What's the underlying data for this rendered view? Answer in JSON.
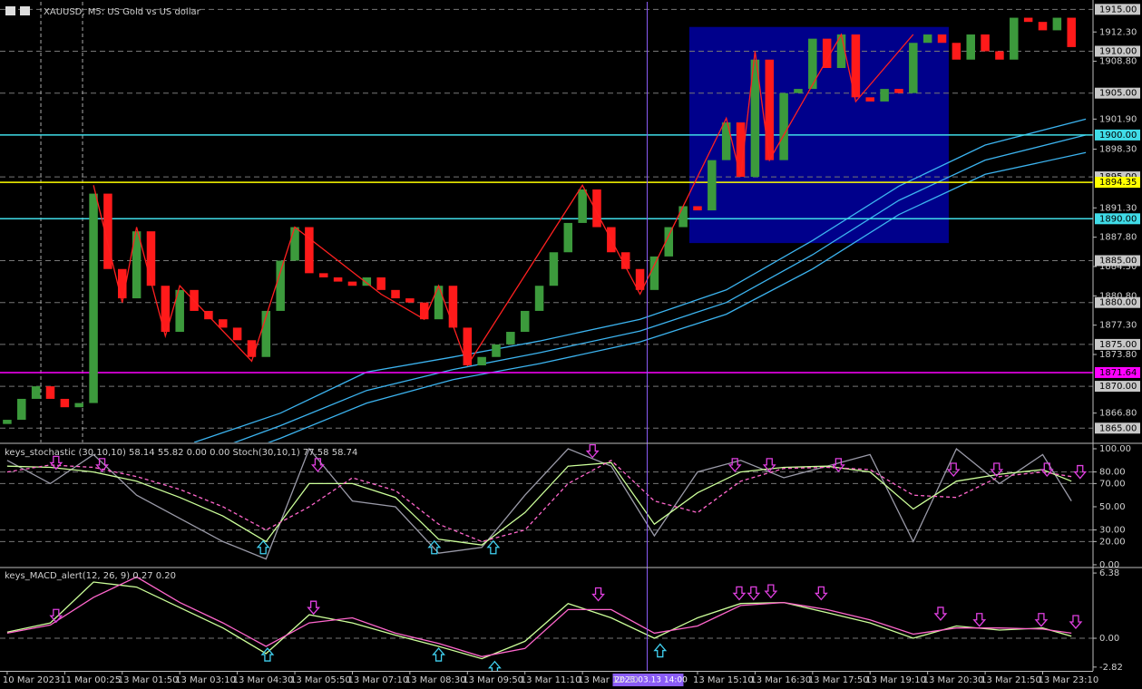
{
  "chart_data": [
    {
      "type": "candlestick",
      "title": "XAUUSD, M5: US Gold vs US dollar",
      "open": [
        1865.5,
        1866.0,
        1868.5,
        1870.0,
        1868.5,
        1867.5,
        1868.0,
        1893.0,
        1884.0,
        1880.5,
        1888.5,
        1882.0,
        1876.5,
        1881.5,
        1879.0,
        1878.0,
        1877.0,
        1875.5,
        1873.5,
        1879.0,
        1885.0,
        1889.0,
        1883.5,
        1883.0,
        1882.5,
        1882.0,
        1883.0,
        1881.5,
        1880.5,
        1880.0,
        1878.0,
        1882.0,
        1877.0,
        1872.5,
        1873.5,
        1875.0,
        1876.5,
        1879.0,
        1882.0,
        1886.0,
        1889.5,
        1893.5,
        1889.0,
        1886.0,
        1884.0,
        1881.5,
        1885.5,
        1889.0,
        1891.5,
        1891.0,
        1897.0,
        1901.5,
        1895.0,
        1909.0,
        1897.0,
        1905.0,
        1905.5,
        1911.5,
        1908.0,
        1912.0,
        1904.5,
        1904.0,
        1905.5,
        1905.0,
        1911.0,
        1912.0,
        1911.0,
        1909.0,
        1912.0,
        1910.0,
        1909.0,
        1914.0,
        1913.5,
        1912.5,
        1914.0
      ],
      "close": [
        1866.0,
        1868.5,
        1870.0,
        1868.5,
        1867.5,
        1868.0,
        1893.0,
        1884.0,
        1880.5,
        1888.5,
        1882.0,
        1876.5,
        1881.5,
        1879.0,
        1878.0,
        1877.0,
        1875.5,
        1873.5,
        1879.0,
        1885.0,
        1889.0,
        1883.5,
        1883.0,
        1882.5,
        1882.0,
        1883.0,
        1881.5,
        1880.5,
        1880.0,
        1878.0,
        1882.0,
        1877.0,
        1872.5,
        1873.5,
        1875.0,
        1876.5,
        1879.0,
        1882.0,
        1886.0,
        1889.5,
        1893.5,
        1889.0,
        1886.0,
        1884.0,
        1881.5,
        1885.5,
        1889.0,
        1891.5,
        1891.0,
        1897.0,
        1901.5,
        1895.0,
        1909.0,
        1897.0,
        1905.0,
        1905.5,
        1911.5,
        1908.0,
        1912.0,
        1904.5,
        1904.0,
        1905.5,
        1905.0,
        1911.0,
        1912.0,
        1911.0,
        1909.0,
        1912.0,
        1910.0,
        1909.0,
        1914.0,
        1913.5,
        1912.5,
        1914.0,
        1910.5
      ],
      "bull_color": "#3c9a3c",
      "bear_color": "#ff1a1a",
      "xlim": [
        -0.5,
        75.5
      ],
      "ylim": [
        1863.3,
        1915.9
      ],
      "xticks": [
        {
          "value": 0,
          "label": "10 Mar 2023"
        },
        {
          "value": 4,
          "label": "11 Mar 00:25"
        },
        {
          "value": 8,
          "label": "13 Mar 01:50"
        },
        {
          "value": 12,
          "label": "13 Mar 03:10"
        },
        {
          "value": 16,
          "label": "13 Mar 04:30"
        },
        {
          "value": 20,
          "label": "13 Mar 05:50"
        },
        {
          "value": 24,
          "label": "13 Mar 07:10"
        },
        {
          "value": 28,
          "label": "13 Mar 08:30"
        },
        {
          "value": 32,
          "label": "13 Mar 09:50"
        },
        {
          "value": 36,
          "label": "13 Mar 11:10"
        },
        {
          "value": 40,
          "label": "13 Mar 12:30"
        },
        {
          "value": 48,
          "label": "13 Mar 15:10"
        },
        {
          "value": 52,
          "label": "13 Mar 16:30"
        },
        {
          "value": 56,
          "label": "13 Mar 17:50"
        },
        {
          "value": 60,
          "label": "13 Mar 19:10"
        },
        {
          "value": 64,
          "label": "13 Mar 20:30"
        },
        {
          "value": 68,
          "label": "13 Mar 21:50"
        },
        {
          "value": 72,
          "label": "13 Mar 23:10"
        }
      ],
      "yticks": [
        {
          "value": 1912.3,
          "label": "1912.30"
        },
        {
          "value": 1908.8,
          "label": "1908.80"
        },
        {
          "value": 1901.9,
          "label": "1901.90"
        },
        {
          "value": 1898.3,
          "label": "1898.30"
        },
        {
          "value": 1891.3,
          "label": "1891.30"
        },
        {
          "value": 1887.8,
          "label": "1887.80"
        },
        {
          "value": 1884.3,
          "label": "1884.30"
        },
        {
          "value": 1880.8,
          "label": "1880.80"
        },
        {
          "value": 1877.3,
          "label": "1877.30"
        },
        {
          "value": 1873.8,
          "label": "1873.80"
        },
        {
          "value": 1866.8,
          "label": "1866.80"
        }
      ],
      "grid_levels": [
        {
          "value": 1915,
          "label": "1915.00"
        },
        {
          "value": 1910,
          "label": "1910.00"
        },
        {
          "value": 1905,
          "label": "1905.00"
        },
        {
          "value": 1895,
          "label": "1895.00"
        },
        {
          "value": 1885,
          "label": "1885.00"
        },
        {
          "value": 1880,
          "label": "1880.00"
        },
        {
          "value": 1875,
          "label": "1875.00"
        },
        {
          "value": 1870,
          "label": "1870.00"
        },
        {
          "value": 1865,
          "label": "1865.00"
        }
      ],
      "hlines": [
        {
          "value": 1900,
          "label": "1900.00",
          "color": "#40dce8"
        },
        {
          "value": 1894.35,
          "label": "1894.35",
          "color": "#ffff00"
        },
        {
          "value": 1890,
          "label": "1890.00",
          "color": "#40dce8"
        },
        {
          "value": 1871.64,
          "label": "1871.64",
          "color": "#ff00ff"
        }
      ],
      "rectangle": {
        "x": [
          47.43,
          65.47
        ],
        "values": [
          1912.9,
          1887.1
        ],
        "color": "#00008b"
      },
      "moving_averages": {
        "x": [
          13,
          19,
          25,
          31,
          37,
          44,
          50,
          56,
          62,
          68,
          75
        ],
        "color": "#3cb4f0",
        "series": [
          {
            "values": [
              1863.3,
              1866.8,
              1871.7,
              1873.5,
              1875.4,
              1878.0,
              1881.5,
              1887.4,
              1893.9,
              1898.8,
              1901.9
            ]
          },
          {
            "values": [
              1861.5,
              1865.3,
              1869.5,
              1872.0,
              1874.0,
              1876.6,
              1880.0,
              1885.7,
              1892.2,
              1897.0,
              1900.0
            ]
          },
          {
            "values": [
              1860.0,
              1863.8,
              1868.0,
              1870.8,
              1872.7,
              1875.3,
              1878.6,
              1884.0,
              1890.5,
              1895.3,
              1897.9
            ]
          }
        ]
      },
      "zigzag": {
        "x": [
          6,
          8,
          9,
          11,
          12,
          17,
          20,
          26,
          29,
          30,
          32,
          40,
          44,
          50,
          51,
          52,
          53,
          58,
          59,
          63
        ],
        "values": [
          1894,
          1880,
          1889,
          1876,
          1882,
          1873,
          1889,
          1881,
          1878,
          1882,
          1872.5,
          1894,
          1881,
          1902,
          1895,
          1910,
          1897,
          1912,
          1904,
          1912
        ],
        "color": "#ff2020"
      },
      "crosshair": {
        "value": 44.5,
        "label": "2023.03.13 14:00",
        "color": "#8a5cf5"
      },
      "separators": [
        2.34,
        5.24
      ]
    },
    {
      "type": "oscillator",
      "legend_text": "keys_stochastic (30,10,10) 58.14 55.82 0.00 0.00 Stoch(30,10,1) 77.58 58.74",
      "ylim": [
        -1.6,
        103.9
      ],
      "yticks": [
        {
          "value": 100,
          "label": "100.00"
        },
        {
          "value": 80,
          "label": "80.00"
        },
        {
          "value": 70,
          "label": "70.00"
        },
        {
          "value": 50,
          "label": "50.00"
        },
        {
          "value": 30,
          "label": "30.00"
        },
        {
          "value": 20,
          "label": "20.00"
        },
        {
          "value": 0,
          "label": "0.00"
        }
      ],
      "levels": [
        80,
        70,
        30,
        20
      ],
      "x": [
        0,
        3,
        6,
        9,
        12,
        15,
        18,
        21,
        24,
        27,
        30,
        33,
        36,
        39,
        42,
        45,
        48,
        51,
        54,
        57,
        60,
        63,
        66,
        69,
        72,
        74
      ],
      "series": [
        {
          "color": "#9a9aa8",
          "dashed": false,
          "values": [
            90,
            70,
            95,
            60,
            40,
            20,
            5,
            100,
            55,
            50,
            10,
            15,
            60,
            100,
            85,
            25,
            80,
            90,
            75,
            85,
            95,
            20,
            100,
            70,
            95,
            55
          ]
        },
        {
          "color": "#ccff99",
          "dashed": false,
          "values": [
            85,
            84,
            80,
            72,
            58,
            42,
            20,
            70,
            70,
            58,
            22,
            17,
            45,
            85,
            88,
            35,
            62,
            80,
            84,
            85,
            80,
            48,
            72,
            78,
            82,
            72
          ]
        },
        {
          "color": "#ff66cc",
          "dashed": true,
          "values": [
            80,
            86,
            84,
            76,
            65,
            50,
            30,
            50,
            75,
            64,
            35,
            20,
            30,
            70,
            90,
            55,
            45,
            72,
            83,
            84,
            82,
            60,
            58,
            76,
            80,
            76
          ]
        }
      ],
      "down_arrows": {
        "x": [
          3.4,
          6.6,
          21.6,
          40.7,
          50.6,
          53,
          57.8,
          65.8,
          68.8,
          72.3,
          74.6
        ],
        "values": [
          88,
          86,
          86,
          98,
          86,
          86,
          86,
          82,
          82,
          82,
          80
        ],
        "color": "#e040e0"
      },
      "up_arrows": {
        "x": [
          17.8,
          29.7,
          33.8
        ],
        "values": [
          15,
          15,
          15
        ],
        "color": "#40d0f0"
      }
    },
    {
      "type": "oscillator",
      "legend_text": "keys_MACD_alert(12, 26, 9) 0.27 0.20",
      "ylim": [
        -3.19,
        6.83
      ],
      "yticks": [
        6.38,
        {
          "value": 0,
          "label": "0.00"
        },
        -2.82
      ],
      "levels": [
        0
      ],
      "x": [
        0,
        3,
        6,
        9,
        12,
        15,
        18,
        21,
        24,
        27,
        30,
        33,
        36,
        39,
        42,
        45,
        48,
        51,
        54,
        57,
        60,
        63,
        66,
        69,
        72,
        74
      ],
      "series": [
        {
          "color": "#ccff99",
          "dashed": false,
          "values": [
            0.6,
            1.5,
            5.5,
            5.0,
            3.0,
            1.0,
            -1.5,
            2.3,
            1.5,
            0.3,
            -0.8,
            -2.0,
            -0.3,
            3.4,
            2.0,
            0.0,
            2.0,
            3.4,
            3.5,
            2.5,
            1.5,
            0.0,
            1.2,
            0.8,
            1.0,
            0.2
          ]
        },
        {
          "color": "#ff66cc",
          "dashed": false,
          "values": [
            0.5,
            1.3,
            4.0,
            6.0,
            3.5,
            1.5,
            -0.8,
            1.5,
            2.0,
            0.5,
            -0.5,
            -1.8,
            -1.0,
            2.8,
            2.8,
            0.5,
            1.2,
            3.2,
            3.5,
            2.8,
            1.8,
            0.4,
            1.0,
            1.0,
            0.9,
            0.5
          ]
        }
      ],
      "down_arrows": {
        "x": [
          3.4,
          21.3,
          41.1,
          50.9,
          51.9,
          53.1,
          56.6,
          64.9,
          67.6,
          71.9,
          74.3
        ],
        "values": [
          2.2,
          3.0,
          4.3,
          4.4,
          4.4,
          4.6,
          4.4,
          2.4,
          1.8,
          1.8,
          1.6
        ],
        "color": "#e040e0"
      },
      "up_arrows": {
        "x": [
          18.1,
          30,
          33.9,
          45.4
        ],
        "values": [
          -1.6,
          -1.6,
          -2.9,
          -1.2
        ],
        "color": "#40d0f0"
      }
    }
  ]
}
